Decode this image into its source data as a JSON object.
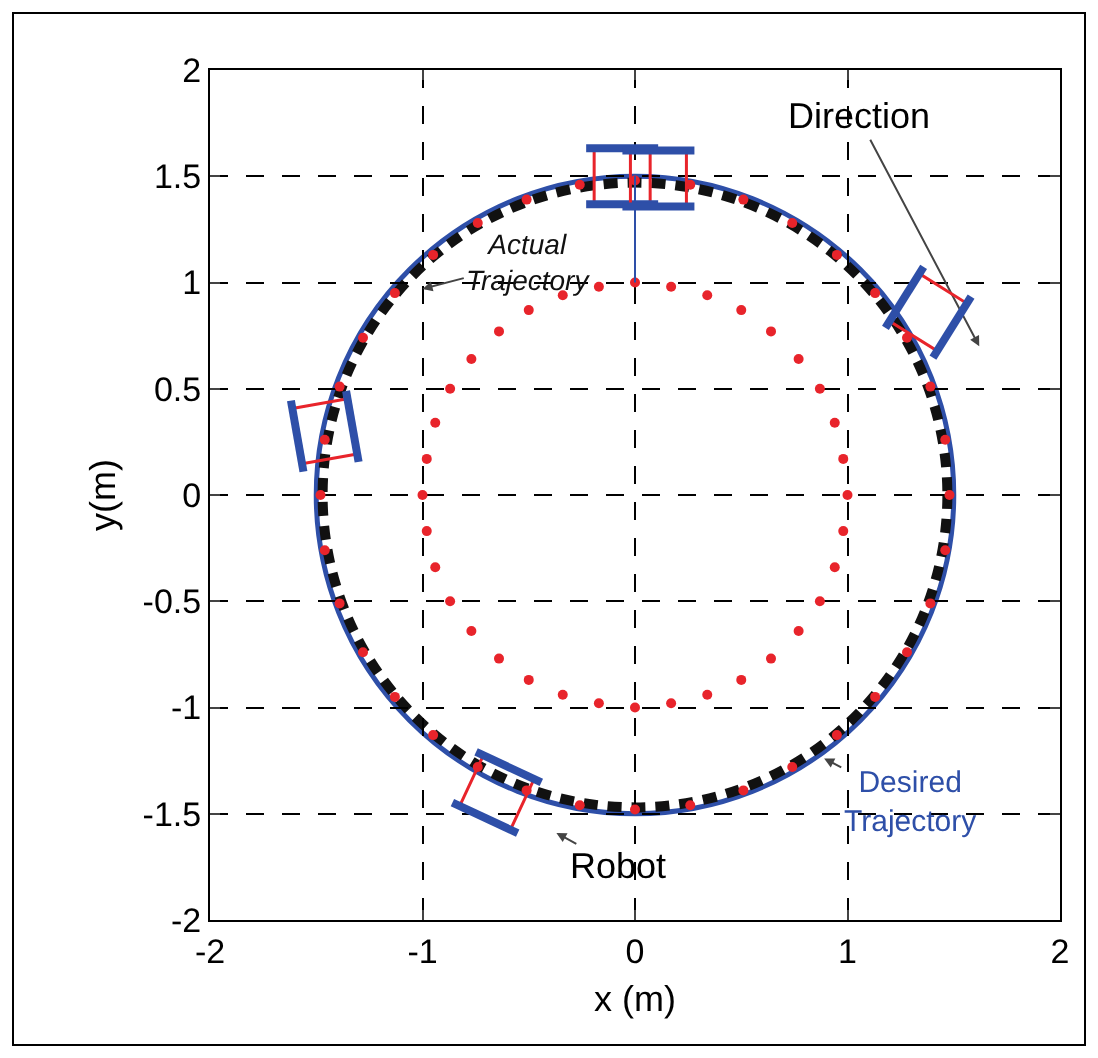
{
  "chart_data": {
    "type": "line",
    "xlabel": "x (m)",
    "ylabel": "y(m)",
    "xlim": [
      -2,
      2
    ],
    "ylim": [
      -2,
      2
    ],
    "xticks": [
      -2,
      -1,
      0,
      1,
      2
    ],
    "yticks": [
      -2,
      -1.5,
      -1,
      -0.5,
      0,
      0.5,
      1,
      1.5,
      2
    ],
    "grid": true,
    "series": [
      {
        "type": "scatter",
        "marker": "circle",
        "color": "#e8242b",
        "x": [
          -1.48,
          -1.46,
          -1.39,
          -1.28,
          -1.13,
          -0.95,
          -0.74,
          -0.51,
          -0.26,
          0,
          0.26,
          0.51,
          0.74,
          0.95,
          1.13,
          1.28,
          1.39,
          1.46,
          1.48,
          1.46,
          1.39,
          1.28,
          1.13,
          0.95,
          0.74,
          0.51,
          0.26,
          0,
          -0.26,
          -0.51,
          -0.74,
          -0.95,
          -1.13,
          -1.28,
          -1.39,
          -1.46
        ],
        "values": [
          0,
          0.26,
          0.51,
          0.74,
          0.95,
          1.13,
          1.28,
          1.39,
          1.46,
          1.48,
          1.46,
          1.39,
          1.28,
          1.13,
          0.95,
          0.74,
          0.51,
          0.26,
          0,
          -0.26,
          -0.51,
          -0.74,
          -0.95,
          -1.13,
          -1.28,
          -1.39,
          -1.46,
          -1.48,
          -1.46,
          -1.39,
          -1.28,
          -1.13,
          -0.95,
          -0.74,
          -0.51,
          -0.26
        ]
      },
      {
        "type": "scatter",
        "marker": "circle",
        "color": "#e8242b",
        "x": [
          -1,
          -0.98,
          -0.94,
          -0.87,
          -0.77,
          -0.64,
          -0.5,
          -0.34,
          -0.17,
          0,
          0.17,
          0.34,
          0.5,
          0.64,
          0.77,
          0.87,
          0.94,
          0.98,
          1,
          0.98,
          0.94,
          0.87,
          0.77,
          0.64,
          0.5,
          0.34,
          0.17,
          0,
          -0.17,
          -0.34,
          -0.5,
          -0.64,
          -0.77,
          -0.87,
          -0.94,
          -0.98
        ],
        "values": [
          0,
          0.17,
          0.34,
          0.5,
          0.64,
          0.77,
          0.87,
          0.94,
          0.98,
          1,
          0.98,
          0.94,
          0.87,
          0.77,
          0.64,
          0.5,
          0.34,
          0.17,
          0,
          -0.17,
          -0.34,
          -0.5,
          -0.64,
          -0.77,
          -0.87,
          -0.94,
          -0.98,
          -1,
          -0.98,
          -0.94,
          -0.87,
          -0.77,
          -0.64,
          -0.5,
          -0.34,
          -0.17
        ]
      },
      {
        "color": "#2e4fa8",
        "line_style": "solid",
        "x": [
          0,
          0
        ],
        "values": [
          1,
          1.5
        ]
      }
    ],
    "annotations": [
      "Direction",
      "Actual Trajectory",
      "Robot",
      "Desired Trajectory"
    ]
  }
}
